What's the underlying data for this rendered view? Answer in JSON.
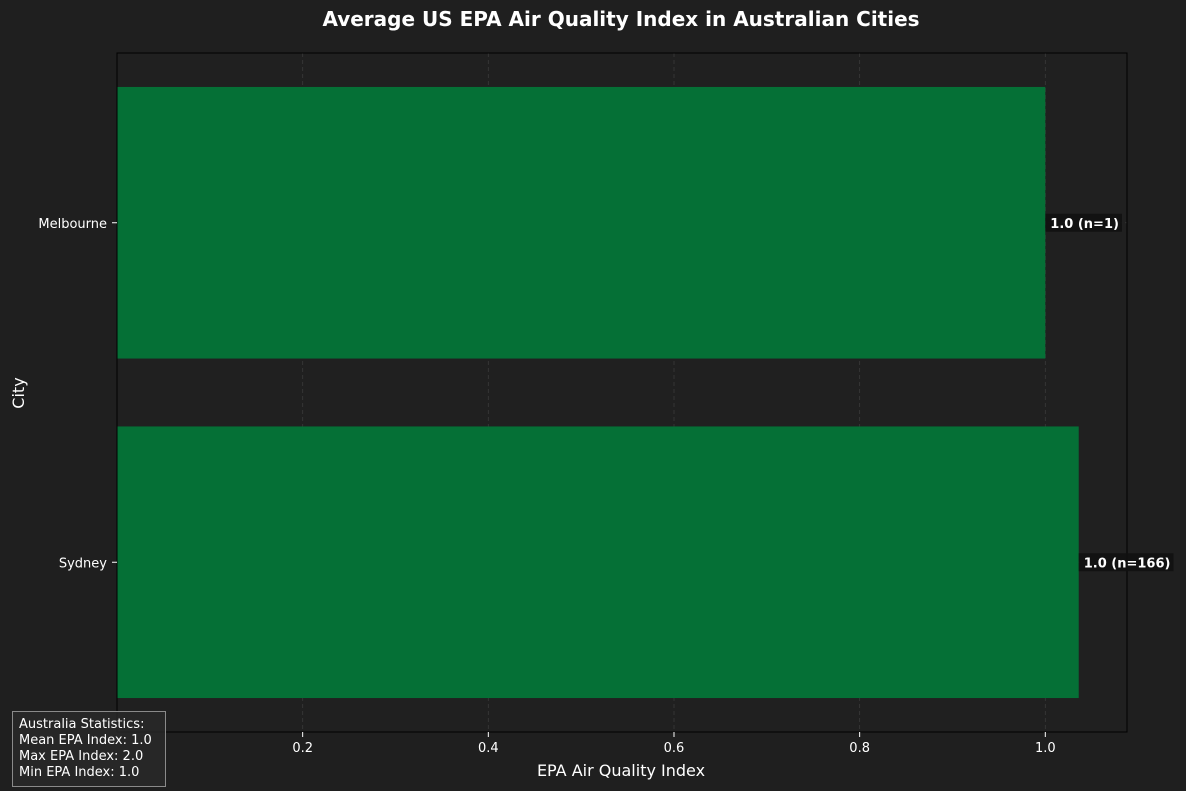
{
  "colors": {
    "background": "#1f1f1f",
    "plot_background": "#202020",
    "bar": "#057036",
    "text": "#ffffff",
    "grid": "#3a3a3a",
    "label_box": "#111111"
  },
  "chart_data": {
    "type": "bar",
    "orientation": "horizontal",
    "title": "Average US EPA Air Quality Index in Australian Cities",
    "xlabel": "EPA Air Quality Index",
    "ylabel": "City",
    "categories": [
      "Melbourne",
      "Sydney"
    ],
    "values": [
      1.0,
      1.036
    ],
    "data_labels": [
      "1.0 (n=1)",
      "1.0 (n=166)"
    ],
    "xlim": [
      0,
      1.088
    ],
    "xticks": [
      0.2,
      0.4,
      0.6,
      0.8,
      1.0
    ],
    "xtick_labels": [
      "0.2",
      "0.4",
      "0.6",
      "0.8",
      "1.0"
    ],
    "grid": true
  },
  "stats": {
    "title": "Australia Statistics:",
    "mean": "Mean EPA Index: 1.0",
    "max": "Max EPA Index: 2.0",
    "min": "Min EPA Index: 1.0"
  }
}
